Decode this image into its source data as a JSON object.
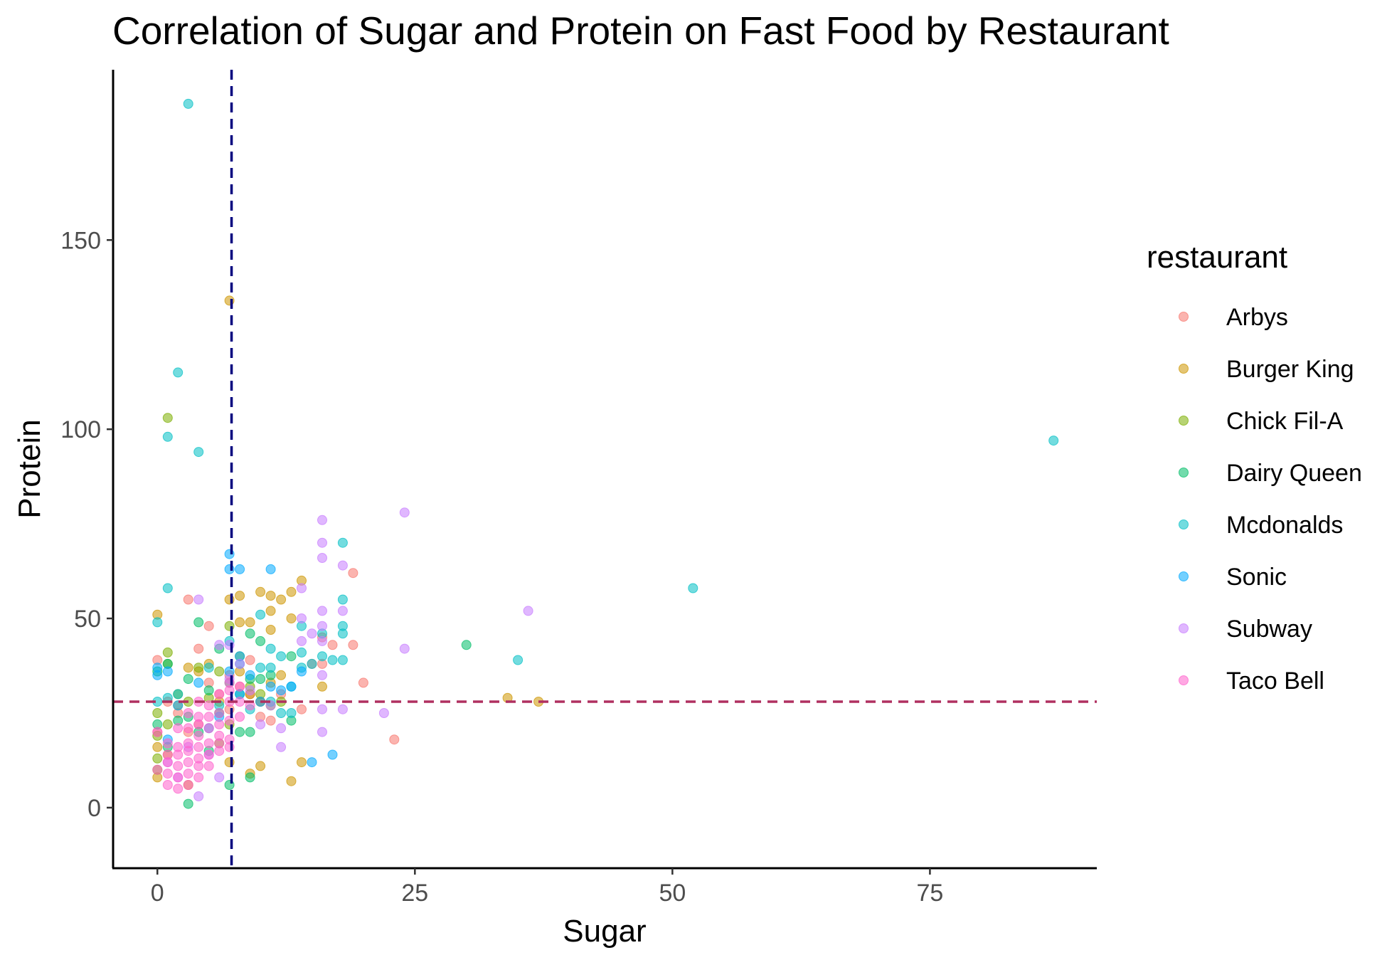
{
  "chart_data": {
    "type": "scatter",
    "title": "Correlation of Sugar and Protein on Fast Food by Restaurant",
    "xlabel": "Sugar",
    "ylabel": "Protein",
    "xlim": [
      -4.3,
      91.2
    ],
    "ylim": [
      -16,
      195
    ],
    "x_ticks": [
      0,
      25,
      50,
      75
    ],
    "y_ticks": [
      0,
      50,
      100,
      150
    ],
    "grid": false,
    "legend": {
      "title": "restaurant",
      "placement": "right"
    },
    "reference_lines": [
      {
        "axis": "x",
        "value": 7.2,
        "color": "#00007f",
        "style": "dashed"
      },
      {
        "axis": "y",
        "value": 28,
        "color": "#b03060",
        "style": "dashed"
      }
    ],
    "series": [
      {
        "name": "Arbys",
        "color": "#F8766D",
        "points": [
          [
            0,
            39
          ],
          [
            0,
            20
          ],
          [
            1,
            28
          ],
          [
            2,
            25
          ],
          [
            3,
            55
          ],
          [
            3,
            20
          ],
          [
            4,
            42
          ],
          [
            4,
            22
          ],
          [
            5,
            48
          ],
          [
            5,
            33
          ],
          [
            6,
            30
          ],
          [
            7,
            35
          ],
          [
            7,
            26
          ],
          [
            8,
            32
          ],
          [
            9,
            39
          ],
          [
            9,
            30
          ],
          [
            10,
            28
          ],
          [
            10,
            24
          ],
          [
            11,
            23
          ],
          [
            12,
            30
          ],
          [
            14,
            26
          ],
          [
            15,
            38
          ],
          [
            16,
            45
          ],
          [
            16,
            38
          ],
          [
            17,
            43
          ],
          [
            19,
            62
          ],
          [
            19,
            43
          ],
          [
            20,
            33
          ],
          [
            23,
            18
          ]
        ]
      },
      {
        "name": "Burger King",
        "color": "#CD9600",
        "points": [
          [
            0,
            51
          ],
          [
            0,
            16
          ],
          [
            0,
            8
          ],
          [
            1,
            14
          ],
          [
            2,
            27
          ],
          [
            3,
            37
          ],
          [
            3,
            6
          ],
          [
            4,
            36
          ],
          [
            5,
            38
          ],
          [
            6,
            28
          ],
          [
            7,
            134
          ],
          [
            7,
            55
          ],
          [
            7,
            12
          ],
          [
            8,
            56
          ],
          [
            8,
            49
          ],
          [
            8,
            36
          ],
          [
            9,
            49
          ],
          [
            9,
            30
          ],
          [
            9,
            9
          ],
          [
            10,
            57
          ],
          [
            10,
            28
          ],
          [
            10,
            11
          ],
          [
            11,
            56
          ],
          [
            11,
            52
          ],
          [
            11,
            47
          ],
          [
            11,
            33
          ],
          [
            12,
            55
          ],
          [
            12,
            35
          ],
          [
            13,
            57
          ],
          [
            13,
            50
          ],
          [
            13,
            7
          ],
          [
            14,
            60
          ],
          [
            14,
            12
          ],
          [
            16,
            32
          ],
          [
            34,
            29
          ],
          [
            37,
            28
          ]
        ]
      },
      {
        "name": "Chick Fil-A",
        "color": "#7CAE00",
        "points": [
          [
            0,
            25
          ],
          [
            0,
            19
          ],
          [
            0,
            13
          ],
          [
            0,
            10
          ],
          [
            1,
            103
          ],
          [
            1,
            41
          ],
          [
            1,
            38
          ],
          [
            1,
            22
          ],
          [
            2,
            30
          ],
          [
            3,
            28
          ],
          [
            4,
            37
          ],
          [
            5,
            29
          ],
          [
            6,
            36
          ],
          [
            6,
            17
          ],
          [
            7,
            48
          ],
          [
            7,
            22
          ],
          [
            8,
            40
          ],
          [
            9,
            32
          ],
          [
            10,
            30
          ],
          [
            11,
            27
          ],
          [
            12,
            28
          ]
        ]
      },
      {
        "name": "Dairy Queen",
        "color": "#00BE67",
        "points": [
          [
            0,
            36
          ],
          [
            0,
            22
          ],
          [
            1,
            38
          ],
          [
            1,
            16
          ],
          [
            2,
            23
          ],
          [
            3,
            34
          ],
          [
            3,
            24
          ],
          [
            3,
            1
          ],
          [
            4,
            49
          ],
          [
            4,
            20
          ],
          [
            5,
            31
          ],
          [
            5,
            15
          ],
          [
            6,
            42
          ],
          [
            6,
            25
          ],
          [
            7,
            33
          ],
          [
            7,
            6
          ],
          [
            8,
            30
          ],
          [
            8,
            20
          ],
          [
            9,
            46
          ],
          [
            9,
            34
          ],
          [
            9,
            20
          ],
          [
            9,
            8
          ],
          [
            10,
            44
          ],
          [
            10,
            34
          ],
          [
            11,
            35
          ],
          [
            13,
            40
          ],
          [
            13,
            23
          ],
          [
            30,
            43
          ]
        ]
      },
      {
        "name": "Mcdonalds",
        "color": "#00BFC4",
        "points": [
          [
            3,
            186
          ],
          [
            2,
            115
          ],
          [
            1,
            98
          ],
          [
            4,
            94
          ],
          [
            87,
            97
          ],
          [
            1,
            58
          ],
          [
            0,
            49
          ],
          [
            0,
            28
          ],
          [
            1,
            29
          ],
          [
            2,
            30
          ],
          [
            5,
            37
          ],
          [
            6,
            27
          ],
          [
            7,
            44
          ],
          [
            8,
            38
          ],
          [
            9,
            26
          ],
          [
            10,
            51
          ],
          [
            10,
            37
          ],
          [
            11,
            42
          ],
          [
            11,
            37
          ],
          [
            11,
            28
          ],
          [
            12,
            40
          ],
          [
            12,
            25
          ],
          [
            13,
            32
          ],
          [
            13,
            25
          ],
          [
            14,
            48
          ],
          [
            14,
            41
          ],
          [
            14,
            37
          ],
          [
            15,
            38
          ],
          [
            16,
            46
          ],
          [
            16,
            40
          ],
          [
            17,
            39
          ],
          [
            18,
            70
          ],
          [
            18,
            55
          ],
          [
            18,
            48
          ],
          [
            18,
            46
          ],
          [
            18,
            39
          ],
          [
            52,
            58
          ],
          [
            35,
            39
          ]
        ]
      },
      {
        "name": "Sonic",
        "color": "#00A9FF",
        "points": [
          [
            0,
            37
          ],
          [
            0,
            35
          ],
          [
            1,
            36
          ],
          [
            1,
            18
          ],
          [
            2,
            27
          ],
          [
            4,
            33
          ],
          [
            5,
            21
          ],
          [
            6,
            24
          ],
          [
            7,
            67
          ],
          [
            7,
            63
          ],
          [
            8,
            63
          ],
          [
            8,
            40
          ],
          [
            7,
            36
          ],
          [
            8,
            30
          ],
          [
            9,
            35
          ],
          [
            10,
            28
          ],
          [
            11,
            63
          ],
          [
            11,
            32
          ],
          [
            12,
            31
          ],
          [
            13,
            32
          ],
          [
            14,
            36
          ],
          [
            15,
            12
          ],
          [
            17,
            14
          ]
        ]
      },
      {
        "name": "Subway",
        "color": "#C77CFF",
        "points": [
          [
            1,
            12
          ],
          [
            2,
            8
          ],
          [
            3,
            16
          ],
          [
            4,
            55
          ],
          [
            4,
            3
          ],
          [
            5,
            14
          ],
          [
            6,
            43
          ],
          [
            6,
            8
          ],
          [
            7,
            43
          ],
          [
            7,
            34
          ],
          [
            8,
            38
          ],
          [
            9,
            31
          ],
          [
            10,
            22
          ],
          [
            11,
            27
          ],
          [
            12,
            21
          ],
          [
            12,
            16
          ],
          [
            14,
            58
          ],
          [
            14,
            50
          ],
          [
            14,
            44
          ],
          [
            15,
            46
          ],
          [
            16,
            76
          ],
          [
            16,
            70
          ],
          [
            16,
            66
          ],
          [
            16,
            52
          ],
          [
            16,
            48
          ],
          [
            16,
            44
          ],
          [
            16,
            35
          ],
          [
            16,
            26
          ],
          [
            16,
            20
          ],
          [
            18,
            64
          ],
          [
            18,
            52
          ],
          [
            18,
            26
          ],
          [
            22,
            25
          ],
          [
            24,
            78
          ],
          [
            24,
            42
          ],
          [
            36,
            52
          ]
        ]
      },
      {
        "name": "Taco Bell",
        "color": "#FF61CC",
        "points": [
          [
            0,
            20
          ],
          [
            0,
            10
          ],
          [
            1,
            17
          ],
          [
            1,
            14
          ],
          [
            1,
            12
          ],
          [
            1,
            9
          ],
          [
            1,
            6
          ],
          [
            2,
            21
          ],
          [
            2,
            16
          ],
          [
            2,
            14
          ],
          [
            2,
            11
          ],
          [
            2,
            8
          ],
          [
            2,
            5
          ],
          [
            3,
            25
          ],
          [
            3,
            21
          ],
          [
            3,
            17
          ],
          [
            3,
            15
          ],
          [
            3,
            12
          ],
          [
            3,
            9
          ],
          [
            3,
            6
          ],
          [
            4,
            28
          ],
          [
            4,
            24
          ],
          [
            4,
            22
          ],
          [
            4,
            19
          ],
          [
            4,
            16
          ],
          [
            4,
            13
          ],
          [
            4,
            11
          ],
          [
            4,
            8
          ],
          [
            5,
            27
          ],
          [
            5,
            24
          ],
          [
            5,
            21
          ],
          [
            5,
            17
          ],
          [
            5,
            14
          ],
          [
            5,
            11
          ],
          [
            6,
            30
          ],
          [
            6,
            25
          ],
          [
            6,
            22
          ],
          [
            6,
            19
          ],
          [
            6,
            17
          ],
          [
            6,
            15
          ],
          [
            7,
            33
          ],
          [
            7,
            31
          ],
          [
            7,
            28
          ],
          [
            7,
            23
          ],
          [
            7,
            18
          ],
          [
            7,
            16
          ],
          [
            8,
            32
          ],
          [
            8,
            28
          ],
          [
            8,
            24
          ],
          [
            9,
            27
          ]
        ]
      }
    ]
  }
}
